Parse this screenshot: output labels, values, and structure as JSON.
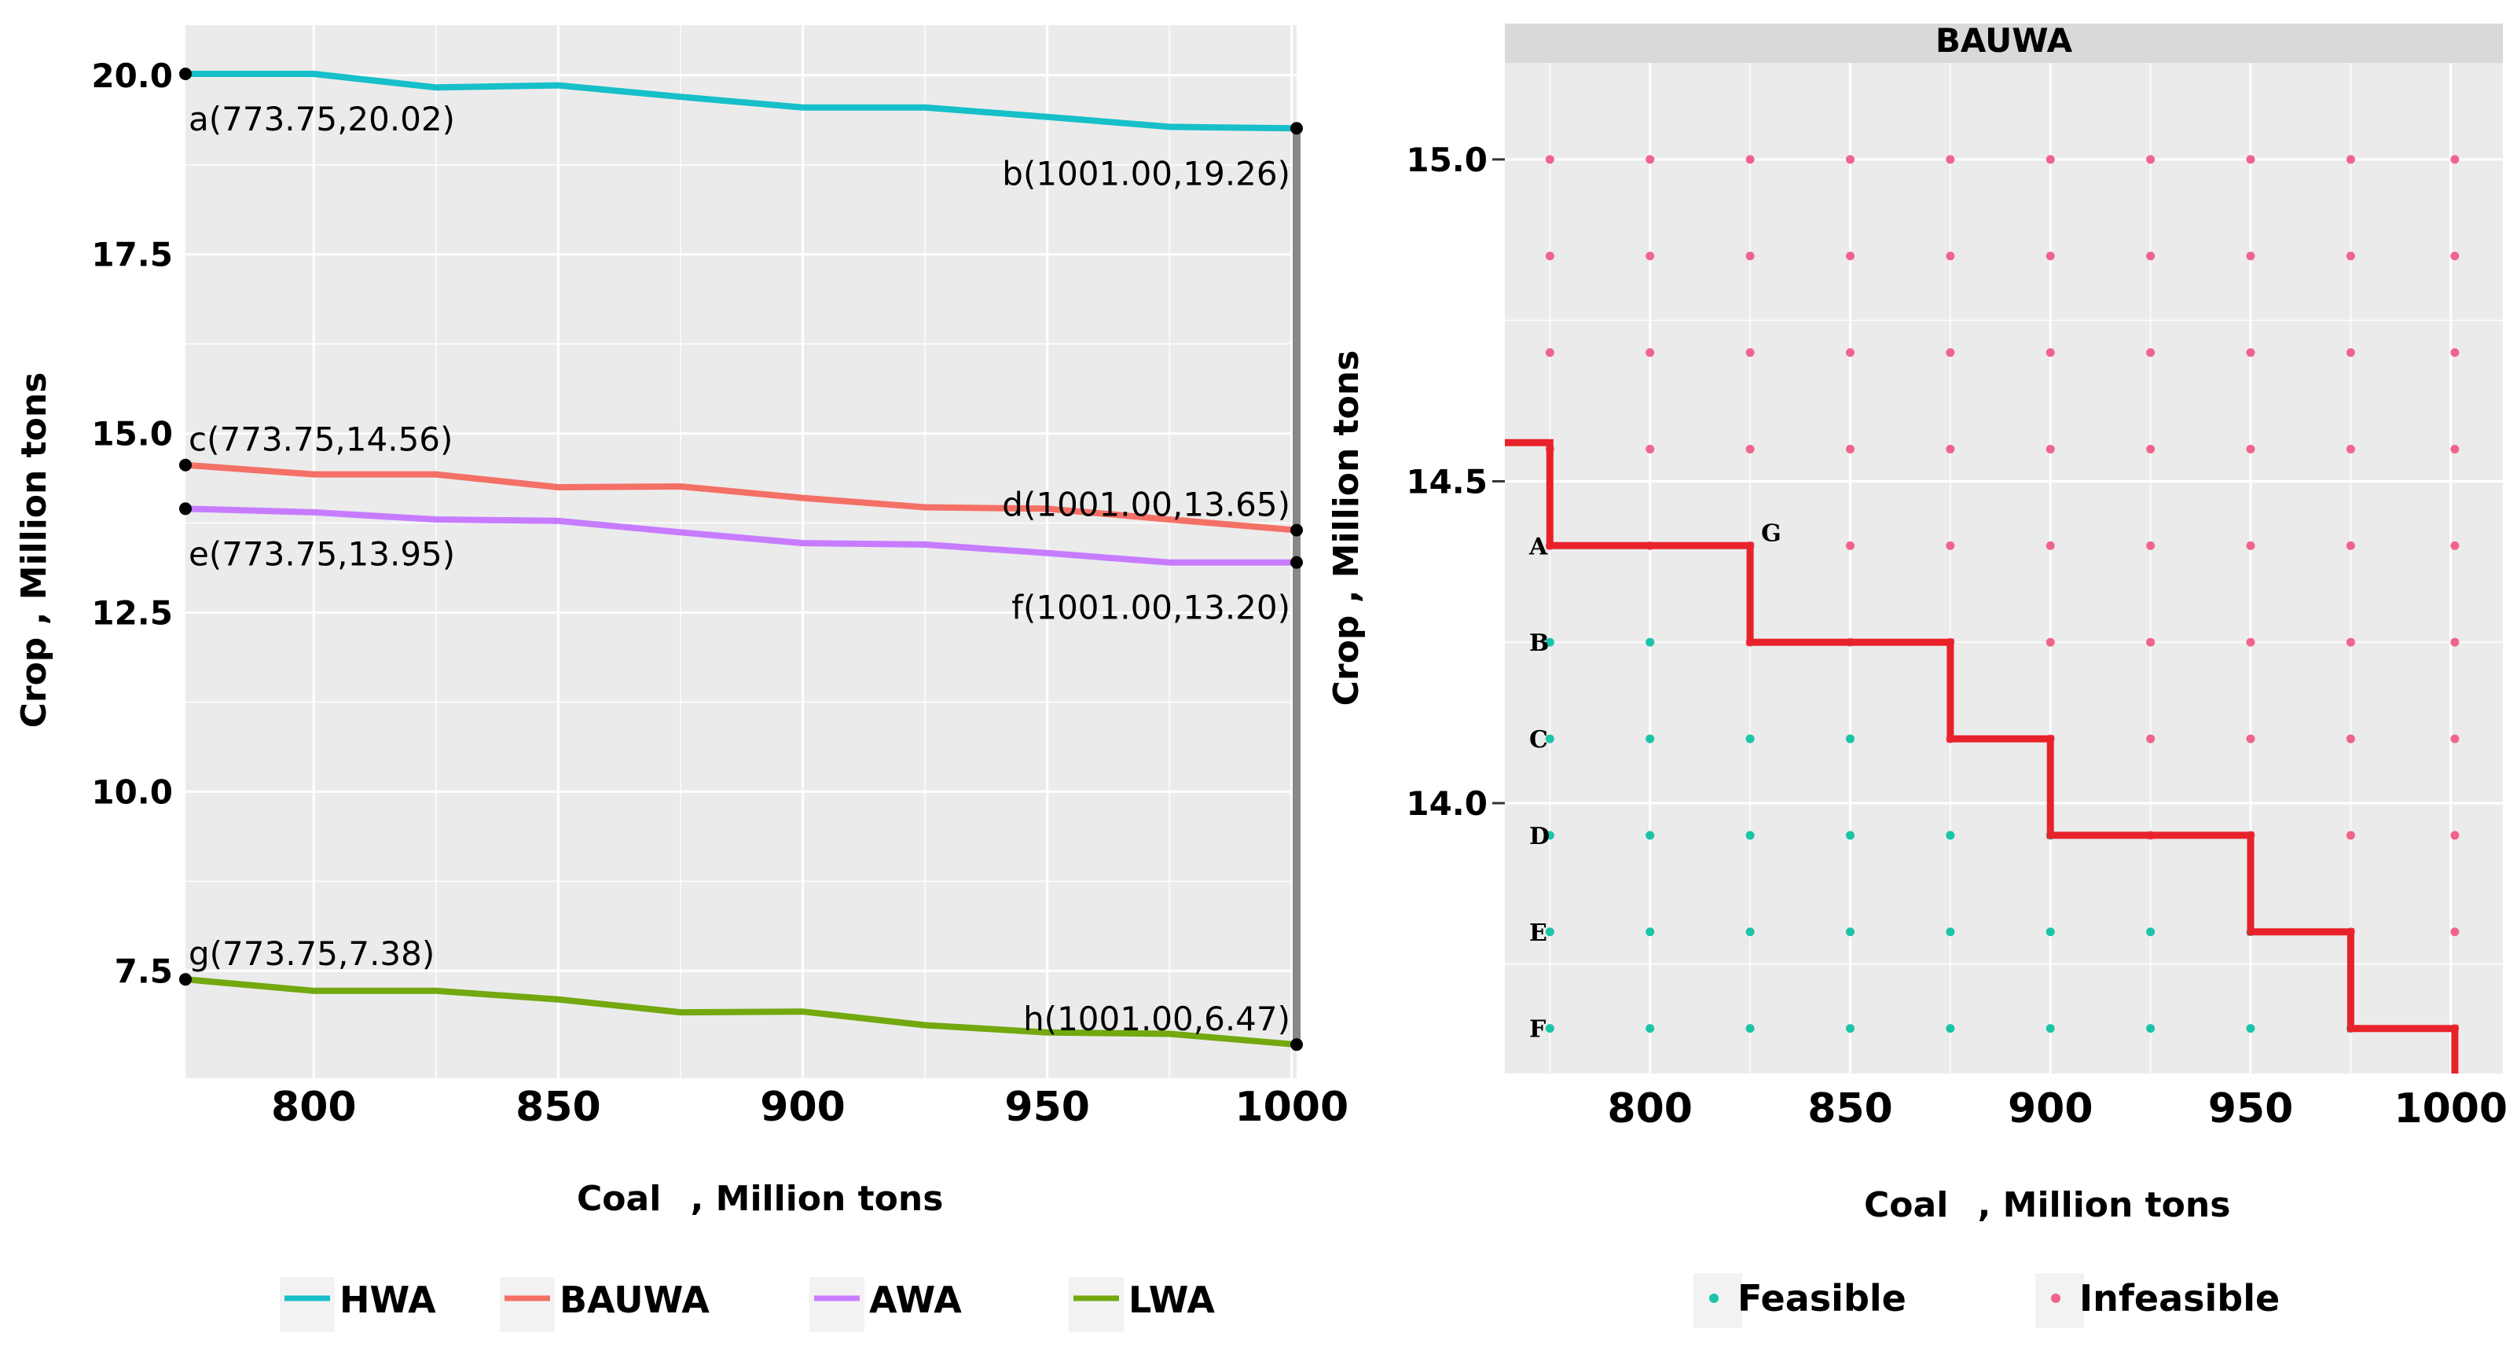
{
  "colors": {
    "HWA": "#17BFC9",
    "BAUWA": "#F47066",
    "AWA": "#C77CFF",
    "LWA": "#73A80F",
    "feasible": "#1AC4A8",
    "infeasible": "#F0648C",
    "frontier": "#E8222A",
    "panel": "#EBEBEB",
    "grid": "#FFFFFF",
    "strip": "#D9D9D9",
    "vline": "#888888"
  },
  "chart_data": [
    {
      "type": "line",
      "xlabel": "Coal",
      "xlabel_unit": ", Million tons",
      "ylabel": "Crop , Million tons",
      "xlim": [
        773.75,
        1001
      ],
      "ylim": [
        6.0,
        20.7
      ],
      "x_ticks": [
        800,
        850,
        900,
        950,
        1000
      ],
      "x_tick_labels": [
        "800",
        "850",
        "900",
        "950",
        "1000"
      ],
      "y_ticks": [
        7.5,
        10.0,
        12.5,
        15.0,
        17.5,
        20.0
      ],
      "y_tick_labels": [
        "7.5",
        "10.0",
        "12.5",
        "15.0",
        "17.5",
        "20.0"
      ],
      "x": [
        773.75,
        800,
        825,
        850,
        875,
        900,
        925,
        950,
        975,
        1001
      ],
      "series": [
        {
          "name": "HWA",
          "values": [
            20.02,
            20.02,
            19.83,
            19.86,
            19.7,
            19.55,
            19.55,
            19.42,
            19.28,
            19.26
          ]
        },
        {
          "name": "BAUWA",
          "values": [
            14.56,
            14.43,
            14.43,
            14.25,
            14.26,
            14.1,
            13.97,
            13.95,
            13.8,
            13.65
          ]
        },
        {
          "name": "AWA",
          "values": [
            13.95,
            13.9,
            13.8,
            13.78,
            13.62,
            13.47,
            13.45,
            13.33,
            13.2,
            13.2
          ]
        },
        {
          "name": "LWA",
          "values": [
            7.38,
            7.22,
            7.22,
            7.1,
            6.92,
            6.93,
            6.74,
            6.64,
            6.62,
            6.47
          ]
        }
      ],
      "vertical_marker_x": 1001,
      "annotations": [
        {
          "id": "a",
          "text": "a(773.75,20.02)",
          "x": 773.75,
          "y": 20.02,
          "anchor": "below-right"
        },
        {
          "id": "b",
          "text": "b(1001.00,19.26)",
          "x": 1001,
          "y": 19.26,
          "anchor": "below-left"
        },
        {
          "id": "c",
          "text": "c(773.75,14.56)",
          "x": 773.75,
          "y": 14.56,
          "anchor": "above-right"
        },
        {
          "id": "d",
          "text": "d(1001.00,13.65)",
          "x": 1001,
          "y": 13.65,
          "anchor": "above-left"
        },
        {
          "id": "e",
          "text": "e(773.75,13.95)",
          "x": 773.75,
          "y": 13.95,
          "anchor": "below-right"
        },
        {
          "id": "f",
          "text": "f(1001.00,13.20)",
          "x": 1001,
          "y": 13.2,
          "anchor": "below-left"
        },
        {
          "id": "g",
          "text": "g(773.75,7.38)",
          "x": 773.75,
          "y": 7.38,
          "anchor": "above-right"
        },
        {
          "id": "h",
          "text": "h(1001.00,6.47)",
          "x": 1001,
          "y": 6.47,
          "anchor": "above-left"
        }
      ],
      "legend": [
        "HWA",
        "BAUWA",
        "AWA",
        "LWA"
      ],
      "legend_position": "bottom",
      "grid": true
    },
    {
      "type": "scatter",
      "title": "BAUWA",
      "xlabel": "Coal",
      "xlabel_unit": ", Million tons",
      "ylabel": "Crop , Million tons",
      "xlim": [
        763.75,
        1013
      ],
      "ylim": [
        13.58,
        15.15
      ],
      "x_ticks": [
        800,
        850,
        900,
        950,
        1000
      ],
      "x_tick_labels": [
        "800",
        "850",
        "900",
        "950",
        "1000"
      ],
      "y_ticks": [
        14.0,
        14.5,
        15.0
      ],
      "y_tick_labels": [
        "14.0",
        "14.5",
        "15.0"
      ],
      "grid_x": [
        775,
        800,
        825,
        850,
        875,
        900,
        925,
        950,
        975,
        1001
      ],
      "grid_y": [
        15.0,
        14.85,
        14.7,
        14.55,
        14.4,
        14.25,
        14.1,
        13.95,
        13.8,
        13.65
      ],
      "feasible_counts": [
        0,
        0,
        0,
        0,
        0,
        2,
        4,
        6,
        8,
        9
      ],
      "row_labels": [
        {
          "label": "A",
          "y": 14.4
        },
        {
          "label": "B",
          "y": 14.25
        },
        {
          "label": "C",
          "y": 14.1
        },
        {
          "label": "D",
          "y": 13.95
        },
        {
          "label": "E",
          "y": 13.8
        },
        {
          "label": "F",
          "y": 13.65
        }
      ],
      "point_label": {
        "label": "G",
        "x": 825,
        "y": 14.4
      },
      "frontier": [
        [
          763.75,
          14.56
        ],
        [
          775,
          14.56
        ],
        [
          775,
          14.4
        ],
        [
          825,
          14.4
        ],
        [
          825,
          14.25
        ],
        [
          875,
          14.25
        ],
        [
          875,
          14.1
        ],
        [
          900,
          14.1
        ],
        [
          900,
          13.95
        ],
        [
          950,
          13.95
        ],
        [
          950,
          13.8
        ],
        [
          975,
          13.8
        ],
        [
          975,
          13.65
        ],
        [
          1001,
          13.65
        ],
        [
          1001,
          13.58
        ]
      ],
      "legend": [
        "Feasible",
        "Infeasible"
      ],
      "legend_position": "bottom"
    }
  ]
}
